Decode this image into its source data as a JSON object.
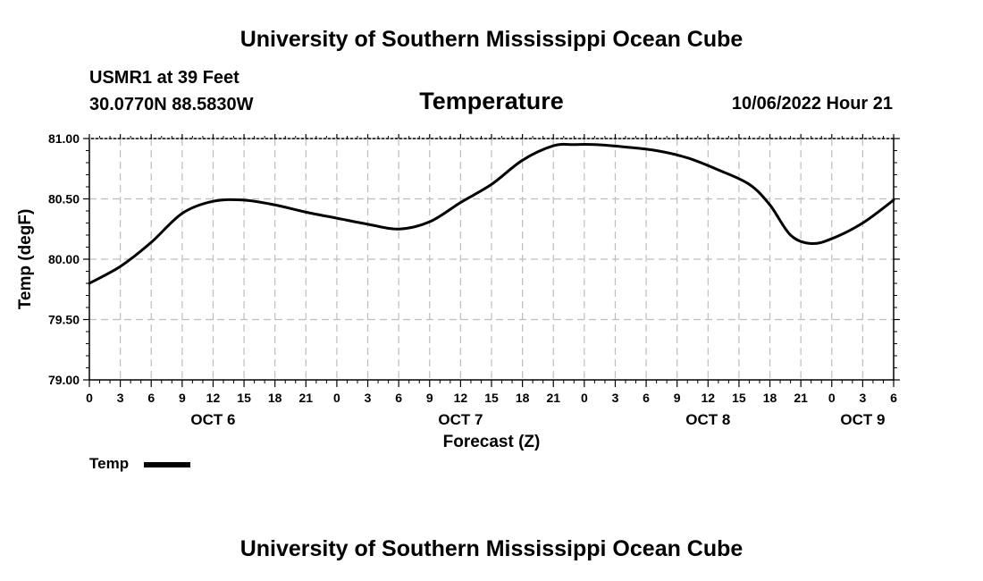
{
  "header": {
    "title": "University of Southern Mississippi Ocean Cube",
    "station_name": "USMR1 at 39 Feet",
    "station_coords": "30.0770N  88.5830W",
    "variable_title": "Temperature",
    "date_label": "10/06/2022 Hour 21"
  },
  "footer": {
    "title": "University of Southern Mississippi Ocean Cube"
  },
  "legend": {
    "label": "Temp"
  },
  "chart_data": {
    "type": "line",
    "title": "Temperature",
    "xlabel": "Forecast (Z)",
    "ylabel": "Temp (degF)",
    "x_range_hours": [
      0,
      78
    ],
    "ylim": [
      79.0,
      81.0
    ],
    "y_ticks": [
      "79.00",
      "79.50",
      "80.00",
      "80.50",
      "81.00"
    ],
    "x_tick_hours": [
      0,
      3,
      6,
      9,
      12,
      15,
      18,
      21,
      24,
      27,
      30,
      33,
      36,
      39,
      42,
      45,
      48,
      51,
      54,
      57,
      60,
      63,
      66,
      69,
      72,
      75,
      78
    ],
    "x_tick_labels": [
      "0",
      "3",
      "6",
      "9",
      "12",
      "15",
      "18",
      "21",
      "0",
      "3",
      "6",
      "9",
      "12",
      "15",
      "18",
      "21",
      "0",
      "3",
      "6",
      "9",
      "12",
      "15",
      "18",
      "21",
      "0",
      "3",
      "6"
    ],
    "day_labels": [
      {
        "hour": 12,
        "label": "OCT 6"
      },
      {
        "hour": 36,
        "label": "OCT 7"
      },
      {
        "hour": 60,
        "label": "OCT 8"
      },
      {
        "hour": 75,
        "label": "OCT 9"
      }
    ],
    "grid": true,
    "series": [
      {
        "name": "Temp",
        "color": "#000000",
        "x": [
          0,
          3,
          6,
          9,
          12,
          15,
          18,
          21,
          24,
          27,
          30,
          33,
          36,
          39,
          42,
          45,
          47,
          49,
          52,
          55,
          58,
          61,
          64,
          66,
          68,
          70,
          72,
          75,
          78
        ],
        "values": [
          79.8,
          79.94,
          80.14,
          80.38,
          80.48,
          80.49,
          80.45,
          80.39,
          80.34,
          80.29,
          80.25,
          80.31,
          80.47,
          80.62,
          80.82,
          80.94,
          80.95,
          80.95,
          80.93,
          80.9,
          80.84,
          80.74,
          80.62,
          80.45,
          80.2,
          80.13,
          80.17,
          80.3,
          80.49
        ]
      }
    ]
  }
}
